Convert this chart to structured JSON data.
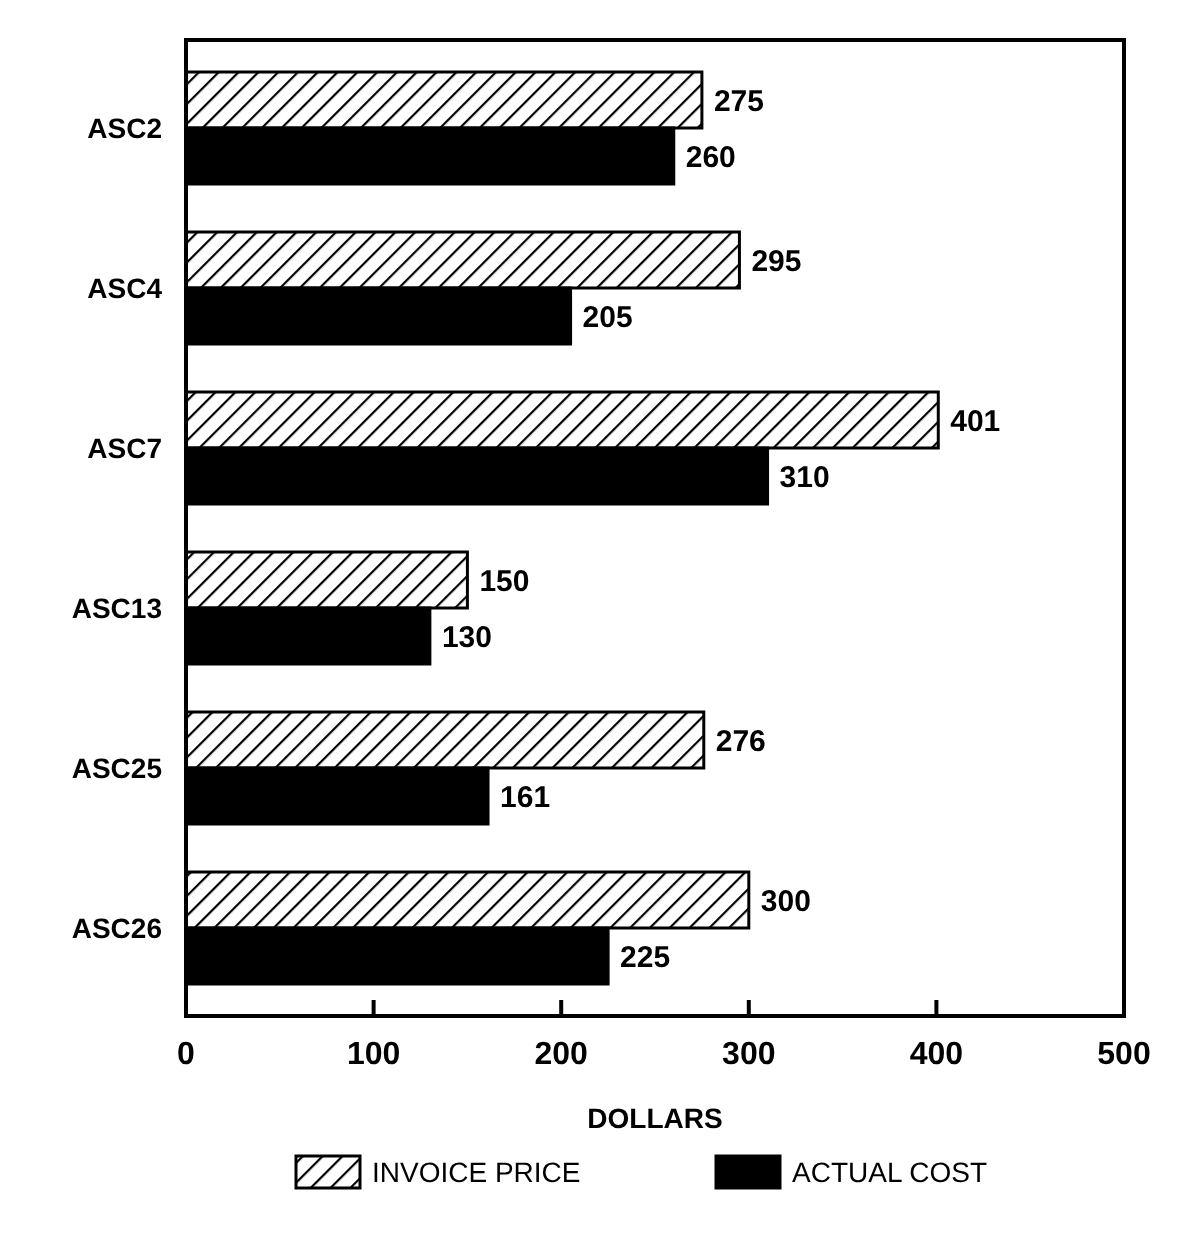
{
  "chart_data": {
    "type": "bar",
    "orientation": "horizontal",
    "xlabel": "DOLLARS",
    "categories": [
      "ASC2",
      "ASC4",
      "ASC7",
      "ASC13",
      "ASC25",
      "ASC26"
    ],
    "series": [
      {
        "name": "INVOICE PRICE",
        "color": "#000000",
        "values": [
          275,
          295,
          401,
          150,
          276,
          300
        ]
      },
      {
        "name": "ACTUAL COST",
        "color": "#000000",
        "values": [
          260,
          205,
          310,
          130,
          161,
          225
        ]
      }
    ],
    "xlim": [
      0,
      500
    ],
    "xticks": [
      0,
      100,
      200,
      300,
      400,
      500
    ],
    "data_labels": true,
    "legend": "bottom",
    "grid": false
  }
}
